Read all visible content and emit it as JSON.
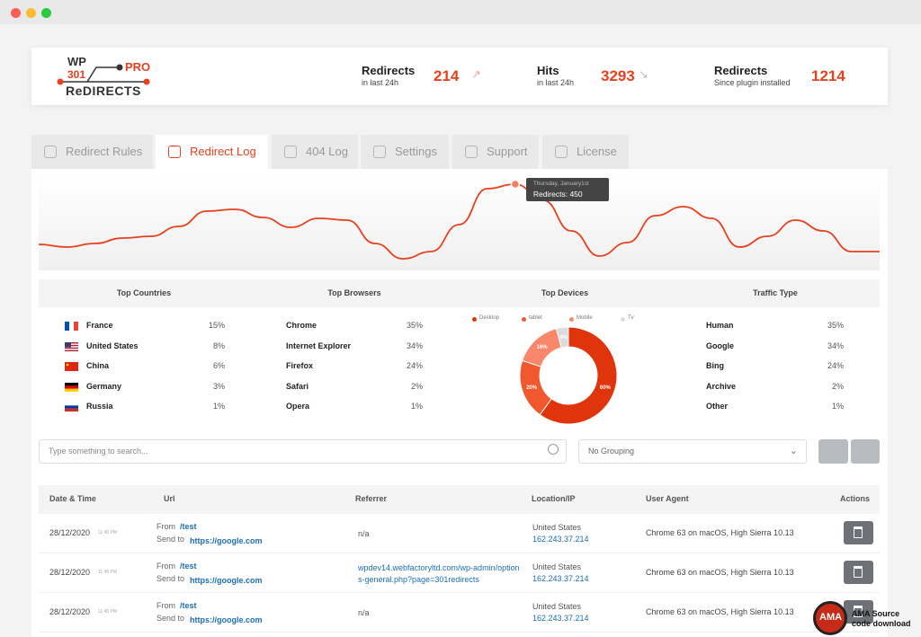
{
  "header": {
    "logo": {
      "wp": "WP",
      "num": "301",
      "pro": "PRO",
      "name": "ReDIRECTS"
    },
    "stats": [
      {
        "label": "Redirects",
        "sub": "in last 24h",
        "value": "214"
      },
      {
        "label": "Hits",
        "sub": "in last 24h",
        "value": "3293"
      },
      {
        "label": "Redirects",
        "sub": "Since plugin installed",
        "value": "1214"
      }
    ]
  },
  "tabs": [
    "Redirect Rules",
    "Redirect Log",
    "404 Log",
    "Settings",
    "Support",
    "License"
  ],
  "active_tab": 1,
  "traffic_chart": {
    "type": "line",
    "color": "#e8401c",
    "values": [
      115,
      100,
      120,
      150,
      160,
      215,
      300,
      310,
      265,
      210,
      260,
      250,
      120,
      35,
      75,
      225,
      425,
      450,
      360,
      190,
      50,
      125,
      275,
      325,
      260,
      100,
      160,
      250,
      190,
      75,
      75
    ],
    "tooltip": {
      "date": "Thursday, January1st",
      "label": "Redirects: 450"
    }
  },
  "panels": [
    {
      "title": "Top Countries",
      "rows": [
        {
          "name": "France",
          "pct": "15%"
        },
        {
          "name": "United States",
          "pct": "8%"
        },
        {
          "name": "China",
          "pct": "6%"
        },
        {
          "name": "Germany",
          "pct": "3%"
        },
        {
          "name": "Russia",
          "pct": "1%"
        }
      ]
    },
    {
      "title": "Top Browsers",
      "rows": [
        {
          "name": "Chrome",
          "pct": "35%"
        },
        {
          "name": "Internet Explorer",
          "pct": "34%"
        },
        {
          "name": "Firefox",
          "pct": "24%"
        },
        {
          "name": "Safari",
          "pct": "2%"
        },
        {
          "name": "Opera",
          "pct": "1%"
        }
      ]
    },
    {
      "title": "Top Devices"
    },
    {
      "title": "Traffic Type",
      "rows": [
        {
          "name": "Human",
          "pct": "35%"
        },
        {
          "name": "Google",
          "pct": "34%"
        },
        {
          "name": "Bing",
          "pct": "24%"
        },
        {
          "name": "Archive",
          "pct": "2%"
        },
        {
          "name": "Other",
          "pct": "1%"
        }
      ]
    }
  ],
  "devices_chart": {
    "type": "pie",
    "categories": [
      "Desktop",
      "tablet",
      "Mobile",
      "Tv"
    ],
    "colors": [
      "#e0340c",
      "#f2582e",
      "#f8876b",
      "#dcdcdc"
    ],
    "values": [
      60,
      20,
      16,
      4
    ],
    "value_labels": [
      "60%",
      "20%",
      "16%",
      "4%"
    ]
  },
  "search_placeholder": "Type something to search...",
  "grouping": "No Grouping",
  "table": {
    "headers": [
      "Date & Time",
      "Url",
      "Referrer",
      "Location/IP",
      "User Agent",
      "Actions"
    ],
    "rows": [
      {
        "date": "28/12/2020",
        "time": "11:45 PM",
        "from_label": "From",
        "from": "/test",
        "to_label": "Send to",
        "to": "https://google.com",
        "referrer": "n/a",
        "location": "United States",
        "ip": "162.243.37.214",
        "agent": "Chrome 63 on macOS, High Sierra 10.13"
      },
      {
        "date": "28/12/2020",
        "time": "11:45 PM",
        "from_label": "From",
        "from": "/test",
        "to_label": "Send to",
        "to": "https://google.com",
        "referrer": "wpdev14.webfactoryltd.com/wp-admin/options-general.php?page=301redirects",
        "location": "United States",
        "ip": "162.243.37.214",
        "agent": "Chrome 63 on macOS, High Sierra 10.13"
      },
      {
        "date": "28/12/2020",
        "time": "11:45 PM",
        "from_label": "From",
        "from": "/test",
        "to_label": "Send to",
        "to": "https://google.com",
        "referrer": "n/a",
        "location": "United States",
        "ip": "162.243.37.214",
        "agent": "Chrome 63 on macOS, High Sierra 10.13"
      }
    ]
  },
  "watermark": {
    "logo": "AMA",
    "line1": "AMA Source",
    "line2": "code download"
  }
}
